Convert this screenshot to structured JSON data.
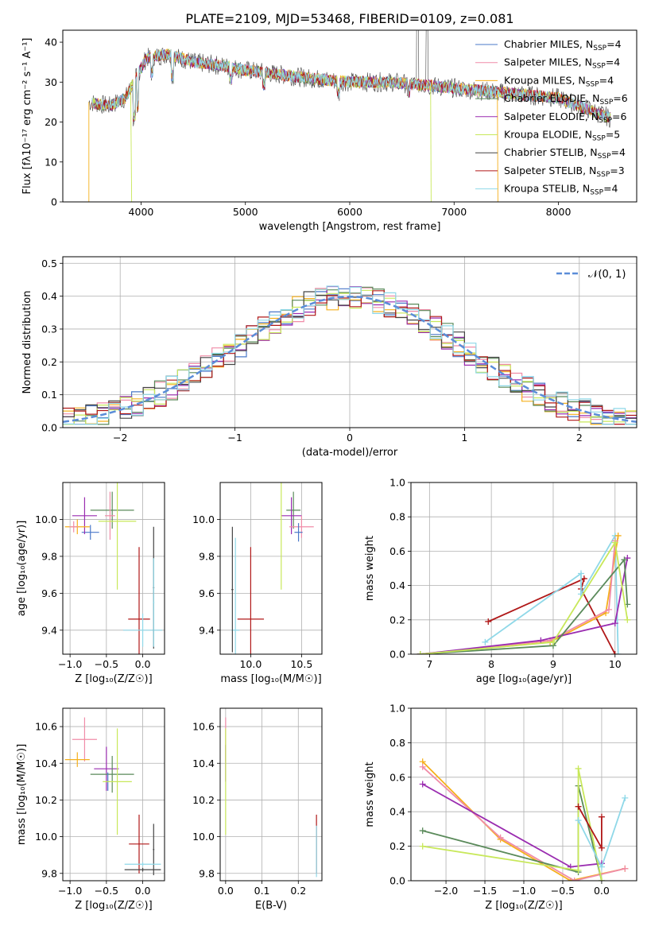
{
  "title": "PLATE=2109, MJD=53468, FIBERID=0109, z=0.081",
  "colors": [
    "#4a78c9",
    "#f08ca8",
    "#f5b01c",
    "#5a8a5a",
    "#9a2cb0",
    "#c8e85a",
    "#444444",
    "#b01818",
    "#8fd8e8"
  ],
  "chart_data": [
    {
      "id": "spectrum",
      "type": "line",
      "xlabel": "wavelength [Angstrom, rest frame]",
      "ylabel": "Flux [fλ10⁻¹⁷ erg cm⁻² s⁻¹ A⁻¹]",
      "xlim": [
        3250,
        8750
      ],
      "ylim": [
        0,
        43
      ],
      "xticks": [
        "4000",
        "5000",
        "6000",
        "7000",
        "8000"
      ],
      "yticks": [
        "0",
        "10",
        "20",
        "30",
        "40"
      ],
      "legend_position": "top-right",
      "grid": false,
      "continuum": [
        [
          3500,
          25
        ],
        [
          3700,
          24
        ],
        [
          3850,
          26
        ],
        [
          3950,
          31
        ],
        [
          4050,
          36
        ],
        [
          4250,
          37
        ],
        [
          4500,
          35
        ],
        [
          4800,
          34
        ],
        [
          5000,
          33
        ],
        [
          5300,
          32
        ],
        [
          5600,
          31
        ],
        [
          6000,
          30
        ],
        [
          6400,
          30
        ],
        [
          6800,
          29
        ],
        [
          7200,
          28
        ],
        [
          7600,
          27
        ],
        [
          8000,
          26
        ],
        [
          8400,
          22
        ],
        [
          8500,
          21
        ]
      ],
      "series": [
        {
          "name": "Chabrier MILES, N_SSP=4",
          "legend": "Chabrier MILES, N",
          "legend_sub": "SSP",
          "legend_val": "=4"
        },
        {
          "name": "Salpeter MILES, N_SSP=4",
          "legend": "Salpeter MILES, N",
          "legend_sub": "SSP",
          "legend_val": "=4"
        },
        {
          "name": "Kroupa MILES, N_SSP=4",
          "legend": "Kroupa MILES, N",
          "legend_sub": "SSP",
          "legend_val": "=4"
        },
        {
          "name": "Chabrier ELODIE, N_SSP=6",
          "legend": "Chabrier ELODIE, N",
          "legend_sub": "SSP",
          "legend_val": "=6"
        },
        {
          "name": "Salpeter ELODIE, N_SSP=6",
          "legend": "Salpeter ELODIE, N",
          "legend_sub": "SSP",
          "legend_val": "=6"
        },
        {
          "name": "Kroupa ELODIE, N_SSP=5",
          "legend": "Kroupa ELODIE, N",
          "legend_sub": "SSP",
          "legend_val": "=5"
        },
        {
          "name": "Chabrier STELIB, N_SSP=4",
          "legend": "Chabrier STELIB, N",
          "legend_sub": "SSP",
          "legend_val": "=4"
        },
        {
          "name": "Salpeter STELIB, N_SSP=3",
          "legend": "Salpeter STELIB, N",
          "legend_sub": "SSP",
          "legend_val": "=3"
        },
        {
          "name": "Kroupa STELIB, N_SSP=4",
          "legend": "Kroupa STELIB, N",
          "legend_sub": "SSP",
          "legend_val": "=4"
        }
      ]
    },
    {
      "id": "residuals",
      "type": "line",
      "xlabel": "(data-model)/error",
      "ylabel": "Normed distribution",
      "xlim": [
        -2.5,
        2.5
      ],
      "ylim": [
        0,
        0.52
      ],
      "xticks": [
        -2,
        -1,
        0,
        1,
        2
      ],
      "yticks": [
        0.0,
        0.1,
        0.2,
        0.3,
        0.4,
        0.5
      ],
      "grid": true,
      "legend_position": "top-right",
      "reference_label": "𝒩(0, 1)",
      "reference": "normal(0,1)"
    },
    {
      "id": "age-vs-Z",
      "type": "scatter",
      "xlabel": "Z [log₁₀(Z/Z☉)]",
      "ylabel": "age  [log₁₀(age/yr)]",
      "xlim": [
        -1.1,
        0.3
      ],
      "ylim": [
        9.27,
        10.2
      ],
      "xticks": [
        -1.0,
        -0.5,
        0.0
      ],
      "yticks": [
        9.4,
        9.6,
        9.8,
        10.0
      ],
      "grid": true,
      "points": [
        {
          "x": -0.72,
          "xerr": 0.12,
          "y": 9.93,
          "yerr": 0.04,
          "c": 0
        },
        {
          "x": -0.8,
          "xerr": 0.17,
          "y": 10.02,
          "yerr": 0.1,
          "c": 4
        },
        {
          "x": -0.9,
          "xerr": 0.17,
          "y": 9.96,
          "yerr": 0.04,
          "c": 2
        },
        {
          "x": -0.95,
          "xerr": 0.06,
          "y": 9.96,
          "yerr": 0.03,
          "c": 1
        },
        {
          "x": -0.42,
          "xerr": 0.3,
          "y": 10.05,
          "yerr": 0.1,
          "c": 3
        },
        {
          "x": -0.45,
          "xerr": 0.07,
          "y": 10.02,
          "yerr": 0.13,
          "c": 1
        },
        {
          "x": -0.35,
          "xerr": 0.26,
          "y": 9.99,
          "yerr": 0.37,
          "c": 5
        },
        {
          "x": -0.05,
          "xerr": 0.15,
          "y": 9.46,
          "yerr": 0.39,
          "c": 7
        },
        {
          "x": 0.0,
          "xerr": 0.27,
          "y": 9.4,
          "yerr": 0.09,
          "c": 8
        },
        {
          "x": 0.15,
          "xerr": 0.01,
          "y": 9.63,
          "yerr": 0.33,
          "c": 6
        },
        {
          "x": 0.15,
          "xerr": 0.01,
          "y": 9.55,
          "yerr": 0.24,
          "c": 8
        }
      ]
    },
    {
      "id": "age-vs-mass",
      "type": "scatter",
      "xlabel": "mass [log₁₀(M/M☉)]",
      "ylabel": "",
      "xlim": [
        9.7,
        10.7
      ],
      "ylim": [
        9.27,
        10.2
      ],
      "xticks": [
        10.0,
        10.5
      ],
      "yticks": [
        9.4,
        9.6,
        9.8,
        10.0
      ],
      "grid": true,
      "points": [
        {
          "x": 10.42,
          "xerr": 0.07,
          "y": 10.05,
          "yerr": 0.1,
          "c": 3
        },
        {
          "x": 10.4,
          "xerr": 0.1,
          "y": 10.02,
          "yerr": 0.1,
          "c": 4
        },
        {
          "x": 10.5,
          "xerr": 0.12,
          "y": 9.96,
          "yerr": 0.06,
          "c": 1
        },
        {
          "x": 10.47,
          "xerr": 0.04,
          "y": 9.93,
          "yerr": 0.05,
          "c": 0
        },
        {
          "x": 10.3,
          "xerr": 0.0,
          "y": 9.99,
          "yerr": 0.37,
          "c": 5
        },
        {
          "x": 10.0,
          "xerr": 0.13,
          "y": 9.46,
          "yerr": 0.39,
          "c": 7
        },
        {
          "x": 9.85,
          "xerr": 0.04,
          "y": 9.4,
          "yerr": 0.5,
          "c": 8
        },
        {
          "x": 9.82,
          "xerr": 0.01,
          "y": 9.62,
          "yerr": 0.34,
          "c": 6
        }
      ]
    },
    {
      "id": "weight-vs-age",
      "type": "line",
      "xlabel": "age  [log₁₀(age/yr)]",
      "ylabel": "mass weight",
      "xlim": [
        6.7,
        10.35
      ],
      "ylim": [
        0,
        1
      ],
      "xticks": [
        7,
        8,
        9,
        10
      ],
      "yticks": [
        0.0,
        0.2,
        0.4,
        0.6,
        0.8,
        1.0
      ],
      "grid": true,
      "series": [
        {
          "c": 7,
          "points": [
            [
              7.95,
              0.19
            ],
            [
              9.5,
              0.44
            ],
            [
              9.45,
              0.38
            ],
            [
              10.0,
              0.0
            ]
          ]
        },
        {
          "c": 8,
          "points": [
            [
              7.9,
              0.07
            ],
            [
              9.45,
              0.47
            ],
            [
              9.45,
              0.35
            ],
            [
              10.0,
              0.69
            ],
            [
              10.05,
              0.0
            ]
          ]
        },
        {
          "c": 2,
          "points": [
            [
              6.85,
              0.0
            ],
            [
              8.95,
              0.07
            ],
            [
              9.85,
              0.24
            ],
            [
              10.05,
              0.69
            ]
          ]
        },
        {
          "c": 1,
          "points": [
            [
              6.85,
              0.0
            ],
            [
              8.95,
              0.08
            ],
            [
              9.9,
              0.26
            ],
            [
              10.0,
              0.66
            ]
          ]
        },
        {
          "c": 4,
          "points": [
            [
              6.85,
              0.0
            ],
            [
              8.8,
              0.08
            ],
            [
              10.0,
              0.18
            ],
            [
              10.2,
              0.56
            ]
          ]
        },
        {
          "c": 3,
          "points": [
            [
              6.85,
              0.0
            ],
            [
              9.0,
              0.05
            ],
            [
              10.15,
              0.55
            ],
            [
              10.2,
              0.29
            ]
          ]
        },
        {
          "c": 5,
          "points": [
            [
              6.85,
              0.0
            ],
            [
              9.0,
              0.07
            ],
            [
              10.0,
              0.65
            ],
            [
              10.2,
              0.2
            ]
          ]
        }
      ]
    },
    {
      "id": "mass-vs-Z",
      "type": "scatter",
      "xlabel": "Z [log₁₀(Z/Z☉)]",
      "ylabel": "mass [log₁₀(M/M☉)]",
      "xlim": [
        -1.1,
        0.3
      ],
      "ylim": [
        9.76,
        10.7
      ],
      "xticks": [
        -1.0,
        -0.5,
        0.0
      ],
      "yticks": [
        9.8,
        10.0,
        10.2,
        10.4,
        10.6
      ],
      "grid": true,
      "points": [
        {
          "x": -0.8,
          "xerr": 0.17,
          "y": 10.53,
          "yerr": 0.12,
          "c": 1
        },
        {
          "x": -0.9,
          "xerr": 0.17,
          "y": 10.42,
          "yerr": 0.04,
          "c": 2
        },
        {
          "x": -0.5,
          "xerr": 0.17,
          "y": 10.37,
          "yerr": 0.12,
          "c": 4
        },
        {
          "x": -0.42,
          "xerr": 0.3,
          "y": 10.34,
          "yerr": 0.1,
          "c": 3
        },
        {
          "x": -0.48,
          "xerr": 0.02,
          "y": 10.3,
          "yerr": 0.05,
          "c": 0
        },
        {
          "x": -0.35,
          "xerr": 0.2,
          "y": 10.3,
          "yerr": 0.29,
          "c": 5
        },
        {
          "x": -0.05,
          "xerr": 0.14,
          "y": 9.96,
          "yerr": 0.16,
          "c": 7
        },
        {
          "x": 0.15,
          "xerr": 0.01,
          "y": 9.93,
          "yerr": 0.14,
          "c": 6
        },
        {
          "x": 0.0,
          "xerr": 0.25,
          "y": 9.85,
          "yerr": 0.01,
          "c": 8
        },
        {
          "x": 0.0,
          "xerr": 0.25,
          "y": 9.82,
          "yerr": 0.01,
          "c": 6
        }
      ]
    },
    {
      "id": "mass-vs-EBV",
      "type": "scatter",
      "xlabel": "E(B-V)",
      "ylabel": "",
      "xlim": [
        -0.015,
        0.265
      ],
      "ylim": [
        9.76,
        10.7
      ],
      "xticks": [
        0.0,
        0.1,
        0.2
      ],
      "yticks": [
        9.8,
        10.0,
        10.2,
        10.4,
        10.6
      ],
      "grid": true,
      "points": [
        {
          "x": 0.0,
          "xerr": 0.0,
          "y": 10.53,
          "yerr": 0.12,
          "c": 1
        },
        {
          "x": 0.0,
          "xerr": 0.0,
          "y": 10.4,
          "yerr": 0.1,
          "c": 4
        },
        {
          "x": 0.0,
          "xerr": 0.0,
          "y": 10.3,
          "yerr": 0.29,
          "c": 5
        },
        {
          "x": 0.25,
          "xerr": 0.0,
          "y": 9.96,
          "yerr": 0.16,
          "c": 7
        },
        {
          "x": 0.25,
          "xerr": 0.0,
          "y": 9.92,
          "yerr": 0.14,
          "c": 8
        }
      ]
    },
    {
      "id": "weight-vs-Z",
      "type": "line",
      "xlabel": "Z [log₁₀(Z/Z☉)]",
      "ylabel": "mass weight",
      "xlim": [
        -2.45,
        0.45
      ],
      "ylim": [
        0,
        1
      ],
      "xticks": [
        -2.0,
        -1.5,
        -1.0,
        -0.5,
        0.0
      ],
      "yticks": [
        0.0,
        0.2,
        0.4,
        0.6,
        0.8,
        1.0
      ],
      "grid": true,
      "series": [
        {
          "c": 2,
          "points": [
            [
              -2.3,
              0.69
            ],
            [
              -1.3,
              0.24
            ],
            [
              -0.4,
              0.0
            ],
            [
              0.3,
              0.07
            ]
          ]
        },
        {
          "c": 1,
          "points": [
            [
              -2.3,
              0.66
            ],
            [
              -1.3,
              0.25
            ],
            [
              -0.35,
              0.0
            ],
            [
              0.3,
              0.07
            ]
          ]
        },
        {
          "c": 4,
          "points": [
            [
              -2.3,
              0.56
            ],
            [
              -0.4,
              0.08
            ],
            [
              0.0,
              0.1
            ]
          ]
        },
        {
          "c": 3,
          "points": [
            [
              -2.3,
              0.29
            ],
            [
              -0.3,
              0.05
            ],
            [
              -0.3,
              0.55
            ],
            [
              0.0,
              0.0
            ]
          ]
        },
        {
          "c": 5,
          "points": [
            [
              -2.3,
              0.2
            ],
            [
              -0.3,
              0.06
            ],
            [
              -0.3,
              0.65
            ],
            [
              0.0,
              0.0
            ]
          ]
        },
        {
          "c": 7,
          "points": [
            [
              -0.3,
              0.43
            ],
            [
              0.0,
              0.19
            ],
            [
              0.0,
              0.37
            ]
          ]
        },
        {
          "c": 8,
          "points": [
            [
              -0.3,
              0.35
            ],
            [
              0.0,
              0.08
            ],
            [
              0.3,
              0.48
            ]
          ]
        }
      ]
    }
  ]
}
